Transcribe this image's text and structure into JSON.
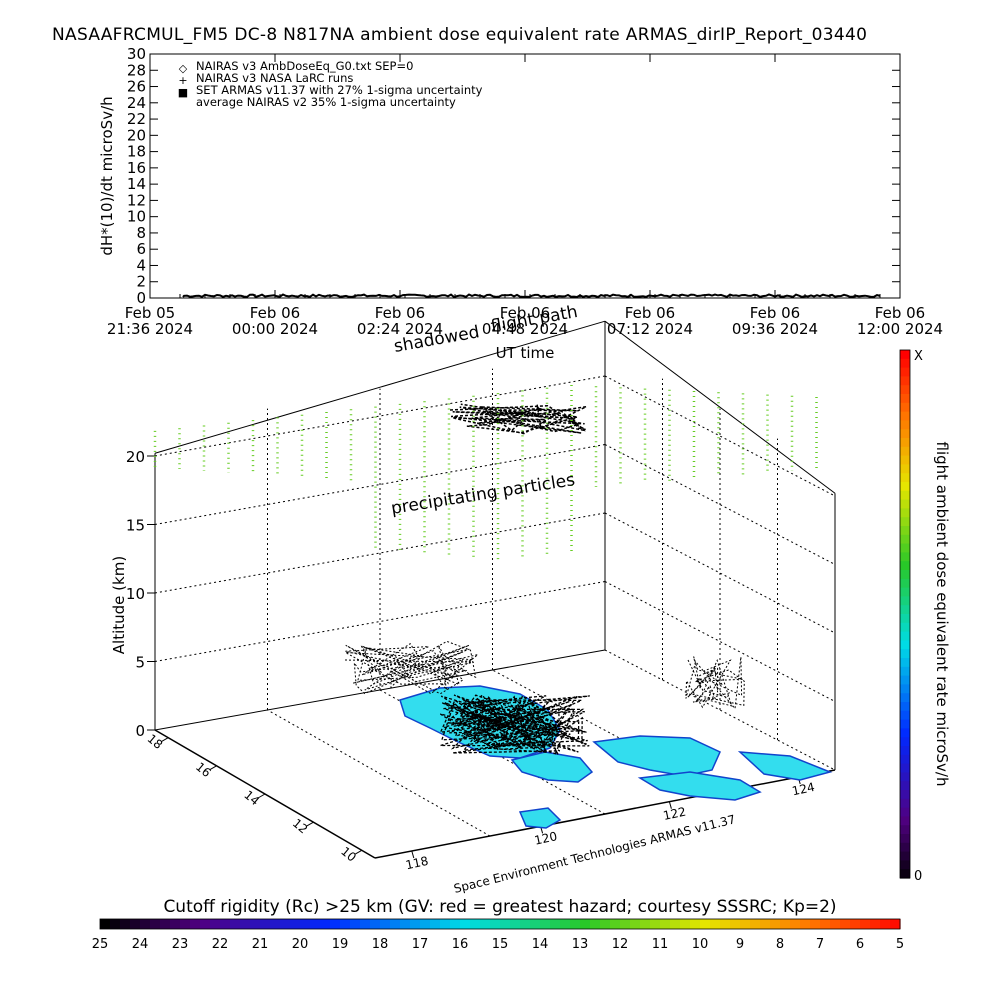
{
  "title": "NASAAFRCMUL_FM5 DC-8   N817NA ambient dose equivalent rate ARMAS_dirIP_Report_03440",
  "chart_data": [
    {
      "type": "line",
      "ylabel": "dH*(10)/dt microSv/h",
      "xlabel": "UT time",
      "ylim": [
        0,
        30
      ],
      "y_ticks": [
        0,
        2,
        4,
        6,
        8,
        10,
        12,
        14,
        16,
        18,
        20,
        22,
        24,
        26,
        28,
        30
      ],
      "x_ticks": [
        {
          "line1": "Feb 05",
          "line2": "21:36 2024"
        },
        {
          "line1": "Feb 06",
          "line2": "00:00 2024"
        },
        {
          "line1": "Feb 06",
          "line2": "02:24 2024"
        },
        {
          "line1": "Feb 06",
          "line2": "04:48 2024"
        },
        {
          "line1": "Feb 06",
          "line2": "07:12 2024"
        },
        {
          "line1": "Feb 06",
          "line2": "09:36 2024"
        },
        {
          "line1": "Feb 06",
          "line2": "12:00 2024"
        }
      ],
      "legend_position": "top-left",
      "legend": [
        {
          "symbol": "◇",
          "label": "NAIRAS v3 AmbDoseEq_G0.txt SEP=0",
          "color": "#000000"
        },
        {
          "symbol": "+",
          "label": "NAIRAS v3 NASA LaRC runs",
          "color": "#000000"
        },
        {
          "symbol": "■",
          "label": "SET ARMAS v11.37 with 27% 1-sigma uncertainty",
          "color": "#1040ff"
        },
        {
          "symbol": "",
          "label": "average NAIRAS v2 35% 1-sigma uncertainty",
          "color": "#000000"
        }
      ],
      "series_note_values_near": 0
    },
    {
      "type": "scatter",
      "ylabel": "Altitude (km)",
      "z_ticks": [
        0,
        5,
        10,
        15,
        20
      ],
      "lat_ticks": [
        10,
        12,
        14,
        16,
        18
      ],
      "lon_ticks": [
        118,
        120,
        122,
        124
      ],
      "annotations": [
        "shadowed",
        "flight path",
        "precipitating particles"
      ],
      "credit": "Space Environment Technologies ARMAS v11.37",
      "colorbar_label": "flight ambient dose equivalent rate microSv/h",
      "colorbar_top": "X",
      "colorbar_bottom": "0"
    },
    {
      "type": "heatmap",
      "title": "Cutoff rigidity (Rc) >25 km (GV: red = greatest hazard; courtesy SSSRC; Kp=2)",
      "scale_labels": [
        "25",
        "24",
        "23",
        "22",
        "21",
        "20",
        "19",
        "18",
        "17",
        "16",
        "15",
        "14",
        "13",
        "12",
        "11",
        "10",
        "9",
        "8",
        "7",
        "6",
        "5"
      ]
    }
  ],
  "colors": {
    "particles": "#66cc22",
    "land": "#33ddee",
    "land_edge": "#1144cc",
    "track": "#000000"
  }
}
